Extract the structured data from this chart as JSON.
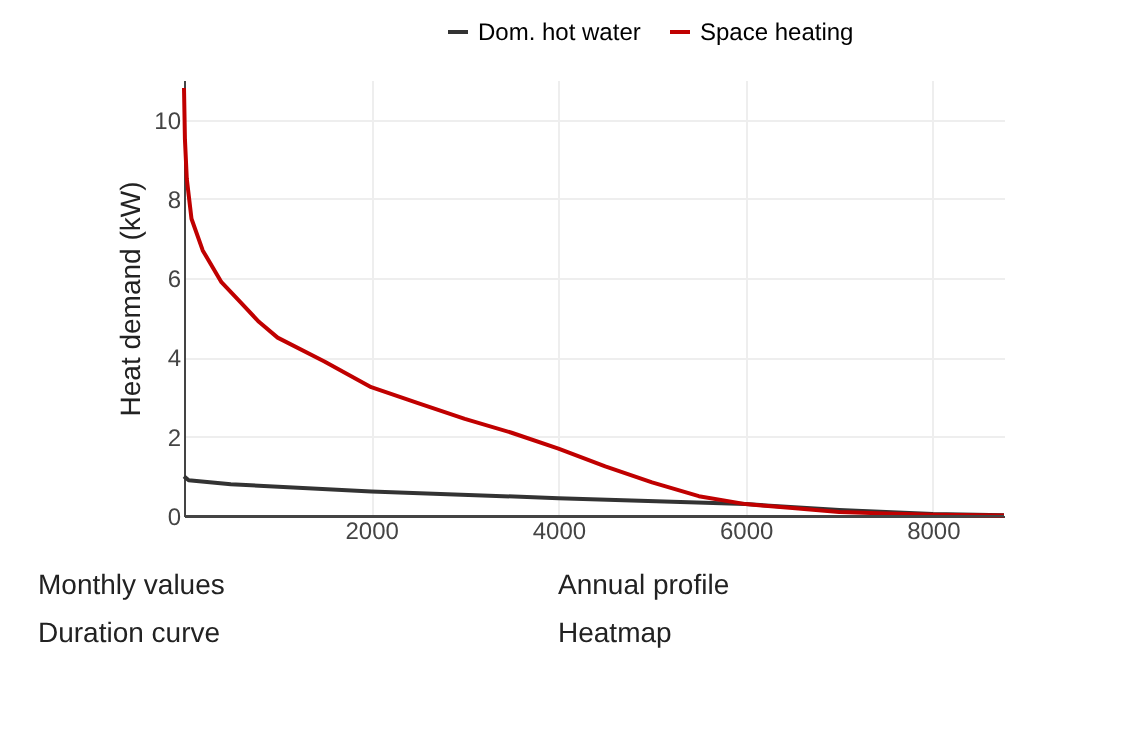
{
  "chart_data": [
    {
      "type": "line",
      "ylabel": "Heat demand (kW)",
      "xlim": [
        0,
        8760
      ],
      "ylim": [
        0,
        11
      ],
      "xticks": [
        2000,
        4000,
        6000,
        8000
      ],
      "yticks": [
        0,
        2,
        4,
        6,
        8,
        10
      ],
      "grid": true,
      "legend": "top right",
      "marker": "none",
      "line_style": "solid",
      "series": [
        {
          "name": "Dom. hot water",
          "color": "#333333",
          "x": [
            0,
            50,
            500,
            2000,
            4000,
            6000,
            7000,
            8000,
            8760
          ],
          "values": [
            1.0,
            0.9,
            0.8,
            0.62,
            0.45,
            0.3,
            0.15,
            0.05,
            0.02
          ]
        },
        {
          "name": "Space heating",
          "color": "#c00000",
          "x": [
            0,
            10,
            30,
            80,
            200,
            400,
            600,
            800,
            1000,
            1500,
            2000,
            2500,
            3000,
            3500,
            4000,
            4500,
            5000,
            5500,
            6000,
            6500,
            7000,
            7500,
            8000,
            8760
          ],
          "values": [
            10.8,
            9.5,
            8.5,
            7.5,
            6.7,
            5.9,
            5.4,
            4.9,
            4.5,
            3.9,
            3.25,
            2.85,
            2.45,
            2.1,
            1.7,
            1.25,
            0.85,
            0.5,
            0.3,
            0.2,
            0.1,
            0.06,
            0.03,
            0.01
          ]
        }
      ]
    },
    {
      "type": "other",
      "annotations": [
        "Monthly values",
        "Duration curve",
        "Annual profile",
        "Heatmap"
      ]
    }
  ]
}
